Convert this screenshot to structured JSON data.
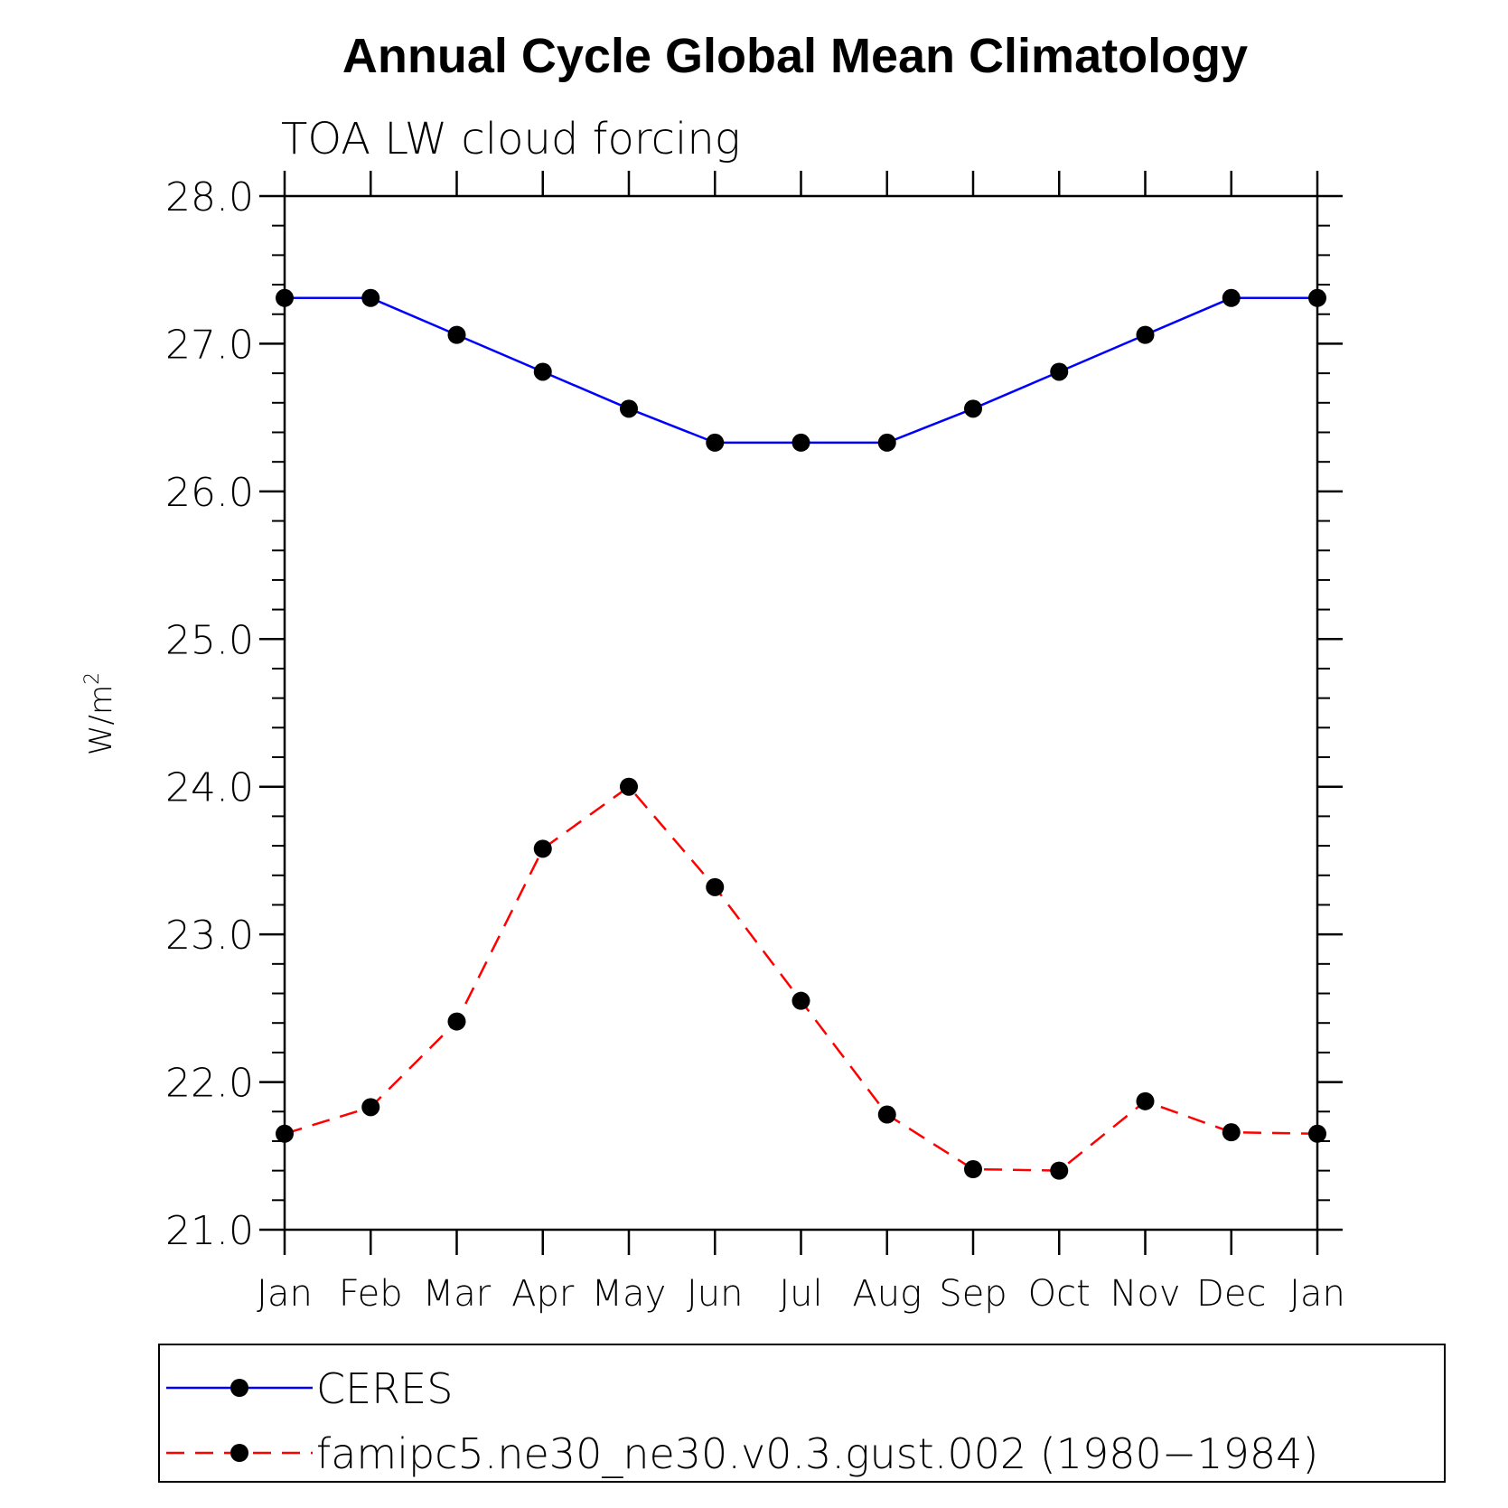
{
  "chart_data": {
    "type": "line",
    "title": "Annual Cycle Global Mean Climatology",
    "subtitle": "TOA LW cloud forcing",
    "ylabel_base": "W/m",
    "ylabel_superscript": "2",
    "xlabel": "",
    "categories": [
      "Jan",
      "Feb",
      "Mar",
      "Apr",
      "May",
      "Jun",
      "Jul",
      "Aug",
      "Sep",
      "Oct",
      "Nov",
      "Dec",
      "Jan"
    ],
    "ylim": [
      21.0,
      28.0
    ],
    "yticks": [
      "21.0",
      "22.0",
      "23.0",
      "24.0",
      "25.0",
      "26.0",
      "27.0",
      "28.0"
    ],
    "y_minor_per_major": 5,
    "grid": false,
    "legend_position": "bottom",
    "series": [
      {
        "name": "CERES",
        "color": "#0000ff",
        "dash": "solid",
        "marker": "filled-circle",
        "values": [
          27.31,
          27.31,
          27.06,
          26.81,
          26.56,
          26.33,
          26.33,
          26.33,
          26.56,
          26.81,
          27.06,
          27.31,
          27.31
        ]
      },
      {
        "name": "famipc5.ne30_ne30.v0.3.gust.002 (1980−1984)",
        "color": "#ff0000",
        "dash": "dashed",
        "marker": "filled-circle",
        "values": [
          21.65,
          21.83,
          22.41,
          23.58,
          24.0,
          23.32,
          22.55,
          21.78,
          21.41,
          21.4,
          21.87,
          21.66,
          21.65
        ]
      }
    ]
  }
}
